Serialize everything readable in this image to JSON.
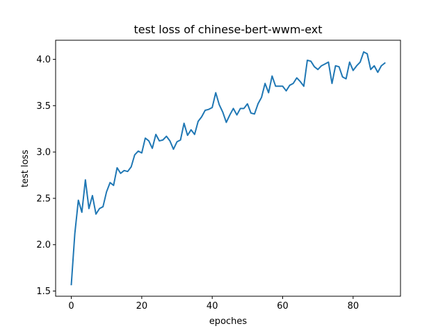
{
  "chart_data": {
    "type": "line",
    "title": "test loss of chinese-bert-wwm-ext",
    "xlabel": "epoches",
    "ylabel": "test loss",
    "xlim": [
      -4.45,
      93.45
    ],
    "ylim": [
      1.444,
      4.206
    ],
    "xticks": [
      0,
      20,
      40,
      60,
      80
    ],
    "yticks": [
      1.5,
      2.0,
      2.5,
      3.0,
      3.5,
      4.0
    ],
    "xtick_labels": [
      "0",
      "20",
      "40",
      "60",
      "80"
    ],
    "ytick_labels": [
      "1.5",
      "2.0",
      "2.5",
      "3.0",
      "3.5",
      "4.0"
    ],
    "grid": false,
    "line_color": "#1f77b4",
    "series": [
      {
        "x": [
          0,
          1,
          2,
          3,
          4,
          5,
          6,
          7,
          8,
          9,
          10,
          11,
          12,
          13,
          14,
          15,
          16,
          17,
          18,
          19,
          20,
          21,
          22,
          23,
          24,
          25,
          26,
          27,
          28,
          29,
          30,
          31,
          32,
          33,
          34,
          35,
          36,
          37,
          38,
          39,
          40,
          41,
          42,
          43,
          44,
          45,
          46,
          47,
          48,
          49,
          50,
          51,
          52,
          53,
          54,
          55,
          56,
          57,
          58,
          59,
          60,
          61,
          62,
          63,
          64,
          65,
          66,
          67,
          68,
          69,
          70,
          71,
          72,
          73,
          74,
          75,
          76,
          77,
          78,
          79,
          80,
          81,
          82,
          83,
          84,
          85,
          86,
          87,
          88,
          89
        ],
        "values": [
          1.57,
          2.12,
          2.48,
          2.35,
          2.7,
          2.39,
          2.53,
          2.33,
          2.39,
          2.41,
          2.57,
          2.67,
          2.64,
          2.83,
          2.77,
          2.8,
          2.79,
          2.84,
          2.97,
          3.01,
          2.99,
          3.15,
          3.12,
          3.04,
          3.19,
          3.12,
          3.13,
          3.17,
          3.12,
          3.03,
          3.11,
          3.13,
          3.31,
          3.18,
          3.24,
          3.19,
          3.33,
          3.38,
          3.45,
          3.46,
          3.48,
          3.64,
          3.51,
          3.43,
          3.32,
          3.4,
          3.47,
          3.4,
          3.47,
          3.47,
          3.52,
          3.42,
          3.41,
          3.52,
          3.59,
          3.74,
          3.64,
          3.82,
          3.71,
          3.71,
          3.71,
          3.66,
          3.72,
          3.74,
          3.8,
          3.76,
          3.71,
          3.99,
          3.98,
          3.92,
          3.89,
          3.93,
          3.95,
          3.97,
          3.74,
          3.93,
          3.92,
          3.81,
          3.79,
          3.97,
          3.88,
          3.93,
          3.97,
          4.08,
          4.06,
          3.89,
          3.93,
          3.86,
          3.93,
          3.96
        ]
      }
    ]
  }
}
